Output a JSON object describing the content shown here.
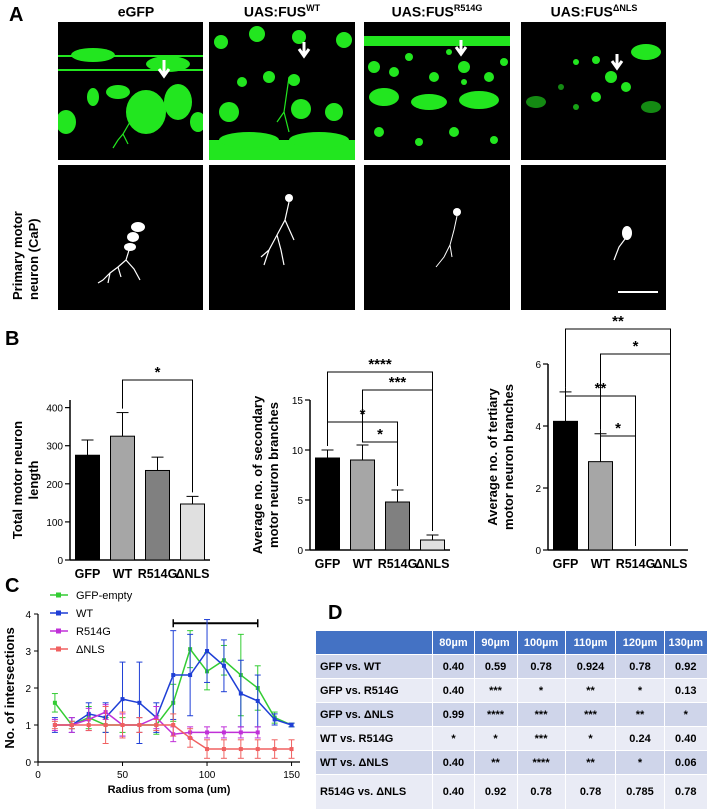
{
  "panel_labels": {
    "a": "A",
    "b": "B",
    "c": "C",
    "d": "D"
  },
  "panel_a": {
    "columns": [
      {
        "base": "eGFP",
        "sup": ""
      },
      {
        "base": "UAS:FUS",
        "sup": "WT"
      },
      {
        "base": "UAS:FUS",
        "sup": "R514G"
      },
      {
        "base": "UAS:FUS",
        "sup": "ΔNLS"
      }
    ],
    "row_label_1": "Primary motor",
    "row_label_2": "neuron (CaP)",
    "colors": {
      "gfp": "#22e61f",
      "neuron": "#ffffff",
      "background": "#000000"
    }
  },
  "chart_data": [
    {
      "type": "bar",
      "panel": "B",
      "ylabel": "Total motor neuron length",
      "categories": [
        "GFP",
        "WT",
        "R514G",
        "ΔNLS"
      ],
      "values": [
        275,
        325,
        235,
        147
      ],
      "errors": [
        40,
        62,
        35,
        20
      ],
      "colors": [
        "#000000",
        "#a6a6a6",
        "#808080",
        "#e0e0e0"
      ],
      "yticks": [
        0,
        100,
        200,
        300,
        400
      ],
      "ylim": [
        0,
        420
      ],
      "significance": [
        {
          "from": 1,
          "to": 3,
          "label": "*"
        }
      ]
    },
    {
      "type": "bar",
      "panel": "B",
      "ylabel": "Average no. of secondary motor neuron branches",
      "categories": [
        "GFP",
        "WT",
        "R514G",
        "ΔNLS"
      ],
      "values": [
        9.2,
        9.0,
        4.8,
        1.0
      ],
      "errors": [
        0.8,
        1.5,
        1.2,
        0.5
      ],
      "colors": [
        "#000000",
        "#a6a6a6",
        "#808080",
        "#e0e0e0"
      ],
      "yticks": [
        0,
        5,
        10,
        15
      ],
      "ylim": [
        0,
        15
      ],
      "significance": [
        {
          "from": 0,
          "to": 3,
          "label": "****"
        },
        {
          "from": 1,
          "to": 3,
          "label": "***"
        },
        {
          "from": 0,
          "to": 2,
          "label": "*"
        },
        {
          "from": 1,
          "to": 2,
          "label": "*"
        }
      ]
    },
    {
      "type": "bar",
      "panel": "B",
      "ylabel": "Average no. of tertiary motor neuron branches",
      "categories": [
        "GFP",
        "WT",
        "R514G",
        "ΔNLS"
      ],
      "values": [
        4.15,
        2.85,
        0,
        0
      ],
      "errors": [
        0.95,
        0.9,
        0,
        0
      ],
      "colors": [
        "#000000",
        "#a6a6a6",
        "#808080",
        "#e0e0e0"
      ],
      "yticks": [
        0,
        2,
        4,
        6
      ],
      "ylim": [
        0,
        6
      ],
      "significance": [
        {
          "from": 0,
          "to": 3,
          "label": "**"
        },
        {
          "from": 1,
          "to": 3,
          "label": "*"
        },
        {
          "from": 0,
          "to": 2,
          "label": "**"
        },
        {
          "from": 1,
          "to": 2,
          "label": "*"
        }
      ]
    },
    {
      "type": "line",
      "panel": "C",
      "xlabel": "Radius from soma (um)",
      "ylabel": "No. of intersections",
      "xlim": [
        0,
        155
      ],
      "ylim": [
        0,
        4
      ],
      "xticks": [
        0,
        50,
        100,
        150
      ],
      "yticks": [
        0,
        1,
        2,
        3,
        4
      ],
      "significance_bar": {
        "x_start": 80,
        "x_end": 130,
        "y": 3.75
      },
      "series": [
        {
          "name": "GFP-empty",
          "color": "#33cc33",
          "x": [
            10,
            20,
            30,
            40,
            50,
            60,
            70,
            80,
            90,
            100,
            110,
            120,
            130,
            140,
            150
          ],
          "y": [
            1.6,
            1.0,
            1.2,
            1.0,
            1.0,
            1.0,
            1.0,
            1.6,
            3.05,
            2.45,
            2.75,
            2.35,
            2.0,
            1.2,
            1.0
          ],
          "err": [
            0.25,
            0.1,
            0.3,
            0.2,
            0.2,
            0.2,
            0.25,
            0.5,
            0.5,
            0.5,
            0.4,
            1.1,
            0.6,
            0.15,
            0.05
          ]
        },
        {
          "name": "WT",
          "color": "#1f3fd6",
          "x": [
            10,
            20,
            30,
            40,
            50,
            60,
            70,
            80,
            90,
            100,
            110,
            120,
            130,
            140,
            150
          ],
          "y": [
            1.0,
            1.0,
            1.3,
            1.2,
            1.7,
            1.6,
            1.2,
            2.35,
            2.35,
            3.0,
            2.6,
            1.85,
            1.65,
            1.15,
            1.0
          ],
          "err": [
            0.2,
            0.2,
            0.3,
            0.4,
            1.0,
            1.1,
            0.4,
            1.2,
            1.1,
            0.85,
            0.7,
            0.9,
            0.7,
            0.15,
            0.05
          ]
        },
        {
          "name": "R514G",
          "color": "#c030d8",
          "x": [
            10,
            20,
            30,
            40,
            50,
            60,
            70,
            80,
            90,
            100,
            110,
            120,
            130
          ],
          "y": [
            1.0,
            1.0,
            1.15,
            1.35,
            1.0,
            1.0,
            1.2,
            0.75,
            0.8,
            0.8,
            0.8,
            0.8,
            0.8
          ],
          "err": [
            0.15,
            0.2,
            0.3,
            0.2,
            0.3,
            0.2,
            0.3,
            0.2,
            0.15,
            0.15,
            0.15,
            0.15,
            0.15
          ]
        },
        {
          "name": "ΔNLS",
          "color": "#f06060",
          "x": [
            10,
            20,
            30,
            40,
            50,
            60,
            70,
            80,
            90,
            100,
            110,
            120,
            130,
            140,
            150
          ],
          "y": [
            1.0,
            1.0,
            1.0,
            1.0,
            1.0,
            1.0,
            1.0,
            1.0,
            0.65,
            0.35,
            0.35,
            0.35,
            0.35,
            0.35,
            0.35
          ],
          "err": [
            0.1,
            0.1,
            0.15,
            0.5,
            0.35,
            0.2,
            0.15,
            0.3,
            0.25,
            0.25,
            0.25,
            0.25,
            0.25,
            0.25,
            0.25
          ]
        }
      ]
    },
    {
      "type": "table",
      "panel": "D",
      "columns": [
        "",
        "80µm",
        "90µm",
        "100µm",
        "110µm",
        "120µm",
        "130µm"
      ],
      "rows": [
        [
          "GFP vs. WT",
          "0.40",
          "0.59",
          "0.78",
          "0.924",
          "0.78",
          "0.92"
        ],
        [
          "GFP vs. R514G",
          "0.40",
          "***",
          "*",
          "**",
          "*",
          "0.13"
        ],
        [
          "GFP vs. ΔNLS",
          "0.99",
          "****",
          "***",
          "***",
          "**",
          "*"
        ],
        [
          "WT vs. R514G",
          "*",
          "*",
          "***",
          "*",
          "0.24",
          "0.40"
        ],
        [
          "WT vs. ΔNLS",
          "0.40",
          "**",
          "****",
          "**",
          "*",
          "0.06"
        ],
        [
          "R514G vs. ΔNLS",
          "0.40",
          "0.92",
          "0.78",
          "0.78",
          "0.785",
          "0.78"
        ]
      ]
    }
  ]
}
